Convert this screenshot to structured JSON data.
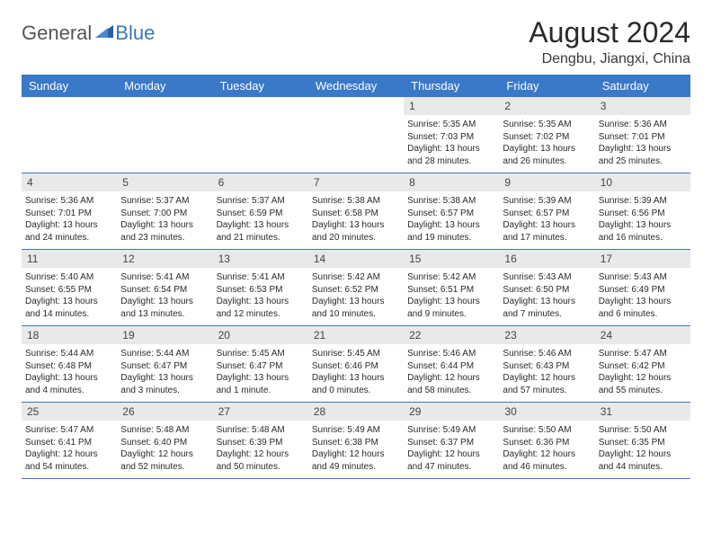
{
  "brand": {
    "part1": "General",
    "part2": "Blue"
  },
  "title": "August 2024",
  "location": "Dengbu, Jiangxi, China",
  "colors": {
    "header_bg": "#3a78c8",
    "header_text": "#ffffff",
    "day_number_bg": "#e9e9e9",
    "week_border": "#3a78b5",
    "text": "#2a2a2a",
    "logo_gray": "#555555",
    "logo_blue": "#3a78b5"
  },
  "day_labels": [
    "Sunday",
    "Monday",
    "Tuesday",
    "Wednesday",
    "Thursday",
    "Friday",
    "Saturday"
  ],
  "weeks": [
    [
      {
        "n": "",
        "sr": "",
        "ss": "",
        "dl": ""
      },
      {
        "n": "",
        "sr": "",
        "ss": "",
        "dl": ""
      },
      {
        "n": "",
        "sr": "",
        "ss": "",
        "dl": ""
      },
      {
        "n": "",
        "sr": "",
        "ss": "",
        "dl": ""
      },
      {
        "n": "1",
        "sr": "Sunrise: 5:35 AM",
        "ss": "Sunset: 7:03 PM",
        "dl": "Daylight: 13 hours and 28 minutes."
      },
      {
        "n": "2",
        "sr": "Sunrise: 5:35 AM",
        "ss": "Sunset: 7:02 PM",
        "dl": "Daylight: 13 hours and 26 minutes."
      },
      {
        "n": "3",
        "sr": "Sunrise: 5:36 AM",
        "ss": "Sunset: 7:01 PM",
        "dl": "Daylight: 13 hours and 25 minutes."
      }
    ],
    [
      {
        "n": "4",
        "sr": "Sunrise: 5:36 AM",
        "ss": "Sunset: 7:01 PM",
        "dl": "Daylight: 13 hours and 24 minutes."
      },
      {
        "n": "5",
        "sr": "Sunrise: 5:37 AM",
        "ss": "Sunset: 7:00 PM",
        "dl": "Daylight: 13 hours and 23 minutes."
      },
      {
        "n": "6",
        "sr": "Sunrise: 5:37 AM",
        "ss": "Sunset: 6:59 PM",
        "dl": "Daylight: 13 hours and 21 minutes."
      },
      {
        "n": "7",
        "sr": "Sunrise: 5:38 AM",
        "ss": "Sunset: 6:58 PM",
        "dl": "Daylight: 13 hours and 20 minutes."
      },
      {
        "n": "8",
        "sr": "Sunrise: 5:38 AM",
        "ss": "Sunset: 6:57 PM",
        "dl": "Daylight: 13 hours and 19 minutes."
      },
      {
        "n": "9",
        "sr": "Sunrise: 5:39 AM",
        "ss": "Sunset: 6:57 PM",
        "dl": "Daylight: 13 hours and 17 minutes."
      },
      {
        "n": "10",
        "sr": "Sunrise: 5:39 AM",
        "ss": "Sunset: 6:56 PM",
        "dl": "Daylight: 13 hours and 16 minutes."
      }
    ],
    [
      {
        "n": "11",
        "sr": "Sunrise: 5:40 AM",
        "ss": "Sunset: 6:55 PM",
        "dl": "Daylight: 13 hours and 14 minutes."
      },
      {
        "n": "12",
        "sr": "Sunrise: 5:41 AM",
        "ss": "Sunset: 6:54 PM",
        "dl": "Daylight: 13 hours and 13 minutes."
      },
      {
        "n": "13",
        "sr": "Sunrise: 5:41 AM",
        "ss": "Sunset: 6:53 PM",
        "dl": "Daylight: 13 hours and 12 minutes."
      },
      {
        "n": "14",
        "sr": "Sunrise: 5:42 AM",
        "ss": "Sunset: 6:52 PM",
        "dl": "Daylight: 13 hours and 10 minutes."
      },
      {
        "n": "15",
        "sr": "Sunrise: 5:42 AM",
        "ss": "Sunset: 6:51 PM",
        "dl": "Daylight: 13 hours and 9 minutes."
      },
      {
        "n": "16",
        "sr": "Sunrise: 5:43 AM",
        "ss": "Sunset: 6:50 PM",
        "dl": "Daylight: 13 hours and 7 minutes."
      },
      {
        "n": "17",
        "sr": "Sunrise: 5:43 AM",
        "ss": "Sunset: 6:49 PM",
        "dl": "Daylight: 13 hours and 6 minutes."
      }
    ],
    [
      {
        "n": "18",
        "sr": "Sunrise: 5:44 AM",
        "ss": "Sunset: 6:48 PM",
        "dl": "Daylight: 13 hours and 4 minutes."
      },
      {
        "n": "19",
        "sr": "Sunrise: 5:44 AM",
        "ss": "Sunset: 6:47 PM",
        "dl": "Daylight: 13 hours and 3 minutes."
      },
      {
        "n": "20",
        "sr": "Sunrise: 5:45 AM",
        "ss": "Sunset: 6:47 PM",
        "dl": "Daylight: 13 hours and 1 minute."
      },
      {
        "n": "21",
        "sr": "Sunrise: 5:45 AM",
        "ss": "Sunset: 6:46 PM",
        "dl": "Daylight: 13 hours and 0 minutes."
      },
      {
        "n": "22",
        "sr": "Sunrise: 5:46 AM",
        "ss": "Sunset: 6:44 PM",
        "dl": "Daylight: 12 hours and 58 minutes."
      },
      {
        "n": "23",
        "sr": "Sunrise: 5:46 AM",
        "ss": "Sunset: 6:43 PM",
        "dl": "Daylight: 12 hours and 57 minutes."
      },
      {
        "n": "24",
        "sr": "Sunrise: 5:47 AM",
        "ss": "Sunset: 6:42 PM",
        "dl": "Daylight: 12 hours and 55 minutes."
      }
    ],
    [
      {
        "n": "25",
        "sr": "Sunrise: 5:47 AM",
        "ss": "Sunset: 6:41 PM",
        "dl": "Daylight: 12 hours and 54 minutes."
      },
      {
        "n": "26",
        "sr": "Sunrise: 5:48 AM",
        "ss": "Sunset: 6:40 PM",
        "dl": "Daylight: 12 hours and 52 minutes."
      },
      {
        "n": "27",
        "sr": "Sunrise: 5:48 AM",
        "ss": "Sunset: 6:39 PM",
        "dl": "Daylight: 12 hours and 50 minutes."
      },
      {
        "n": "28",
        "sr": "Sunrise: 5:49 AM",
        "ss": "Sunset: 6:38 PM",
        "dl": "Daylight: 12 hours and 49 minutes."
      },
      {
        "n": "29",
        "sr": "Sunrise: 5:49 AM",
        "ss": "Sunset: 6:37 PM",
        "dl": "Daylight: 12 hours and 47 minutes."
      },
      {
        "n": "30",
        "sr": "Sunrise: 5:50 AM",
        "ss": "Sunset: 6:36 PM",
        "dl": "Daylight: 12 hours and 46 minutes."
      },
      {
        "n": "31",
        "sr": "Sunrise: 5:50 AM",
        "ss": "Sunset: 6:35 PM",
        "dl": "Daylight: 12 hours and 44 minutes."
      }
    ]
  ]
}
